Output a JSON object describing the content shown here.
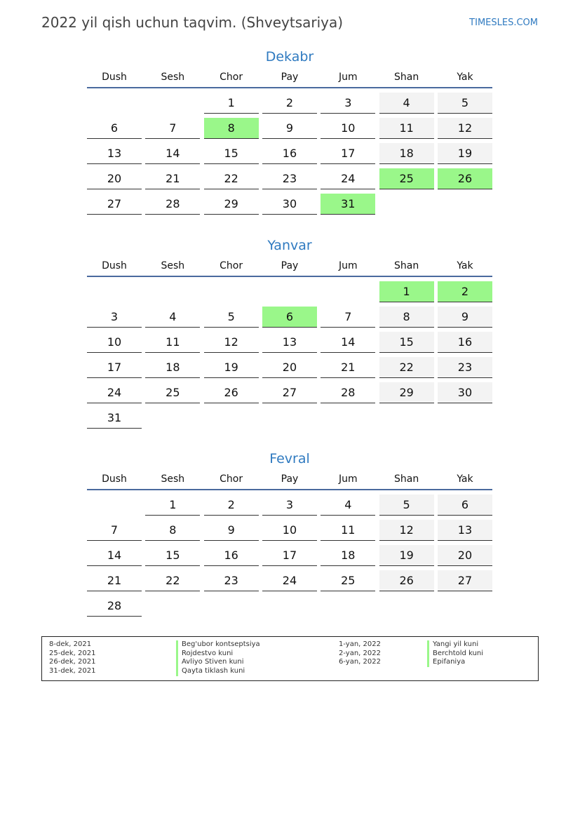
{
  "header": {
    "title": "2022 yil qish uchun taqvim. (Shveytsariya)",
    "brand": "TIMESLES.COM"
  },
  "weekdays": [
    "Dush",
    "Sesh",
    "Chor",
    "Pay",
    "Jum",
    "Shan",
    "Yak"
  ],
  "colors": {
    "accent": "#2f7ac0",
    "holiday": "#9af78a",
    "weekend": "#f3f3f3",
    "header_line": "#4a6a9e"
  },
  "months": [
    {
      "name": "Dekabr",
      "start_offset": 2,
      "days": 31,
      "holidays": [
        8,
        25,
        26,
        31
      ]
    },
    {
      "name": "Yanvar",
      "start_offset": 5,
      "days": 31,
      "holidays": [
        1,
        2,
        6
      ]
    },
    {
      "name": "Fevral",
      "start_offset": 1,
      "days": 28,
      "holidays": []
    }
  ],
  "legend": {
    "col1": [
      {
        "date": "8-dek, 2021",
        "name": "Beg'ubor kontseptsiya"
      },
      {
        "date": "25-dek, 2021",
        "name": "Rojdestvo kuni"
      },
      {
        "date": "26-dek, 2021",
        "name": "Avliyo Stiven kuni"
      },
      {
        "date": "31-dek, 2021",
        "name": "Qayta tiklash kuni"
      }
    ],
    "col2": [
      {
        "date": "1-yan, 2022",
        "name": "Yangi yil kuni"
      },
      {
        "date": "2-yan, 2022",
        "name": "Berchtold kuni"
      },
      {
        "date": "6-yan, 2022",
        "name": "Epifaniya"
      }
    ]
  }
}
